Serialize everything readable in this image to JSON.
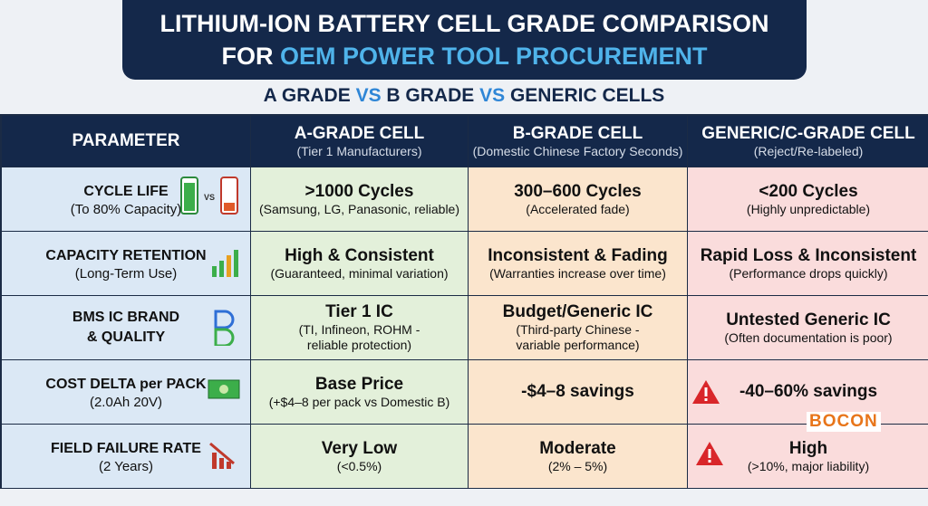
{
  "header": {
    "title_line_1": "LITHIUM-ION BATTERY CELL GRADE COMPARISON",
    "title_line_2": [
      "FOR",
      "OEM POWER TOOL PROCUREMENT"
    ]
  },
  "subtitle": [
    "A GRADE",
    "VS",
    "B GRADE",
    "VS",
    "GENERIC CELLS"
  ],
  "table": {
    "columns": [
      {
        "title": [
          "PARAMETER"
        ],
        "sub": []
      },
      {
        "title": [
          "A-GRADE CELL"
        ],
        "sub": [
          "(Tier 1 Manufacturers)"
        ]
      },
      {
        "title": [
          "B-GRADE CELL"
        ],
        "sub": [
          "(Domestic Chinese Factory Seconds)"
        ]
      },
      {
        "title": [
          "GENERIC/C-GRADE CELL"
        ],
        "sub": [
          "(Reject/Re-labeled)"
        ]
      }
    ],
    "rows": [
      [
        {
          "title": [
            "CYCLE LIFE"
          ],
          "sub": [
            "(To 80% Capacity)"
          ]
        },
        {
          "title": [
            ">1000 Cycles"
          ],
          "sub": [
            "(Samsung, LG, Panasonic, reliable)"
          ]
        },
        {
          "title": [
            "300–600 Cycles"
          ],
          "sub": [
            "(Accelerated fade)"
          ]
        },
        {
          "title": [
            "<200 Cycles"
          ],
          "sub": [
            "(Highly unpredictable)"
          ]
        }
      ],
      [
        {
          "title": [
            "CAPACITY RETENTION"
          ],
          "sub": [
            "(Long-Term Use)"
          ]
        },
        {
          "title": [
            "High & Consistent"
          ],
          "sub": [
            "(Guaranteed, minimal variation)"
          ]
        },
        {
          "title": [
            "Inconsistent & Fading"
          ],
          "sub": [
            "(Warranties increase over time)"
          ]
        },
        {
          "title": [
            "Rapid Loss & Inconsistent"
          ],
          "sub": [
            "(Performance drops quickly)"
          ]
        }
      ],
      [
        {
          "title": [
            "BMS IC BRAND",
            "& QUALITY"
          ],
          "sub": []
        },
        {
          "title": [
            "Tier 1 IC"
          ],
          "sub": [
            "(TI, Infineon, ROHM -",
            "reliable protection)"
          ]
        },
        {
          "title": [
            "Budget/Generic IC"
          ],
          "sub": [
            "(Third-party Chinese -",
            "variable performance)"
          ]
        },
        {
          "title": [
            "Untested Generic IC"
          ],
          "sub": [
            "(Often documentation is poor)"
          ]
        }
      ],
      [
        {
          "title": [
            "COST DELTA per PACK"
          ],
          "sub": [
            "(2.0Ah 20V)"
          ]
        },
        {
          "title": [
            "Base Price"
          ],
          "sub": [
            "(+$4–8 per pack vs Domestic B)"
          ]
        },
        {
          "title": [
            "-$4–8 savings"
          ],
          "sub": []
        },
        {
          "title": [
            "-40–60% savings"
          ],
          "sub": []
        }
      ],
      [
        {
          "title": [
            "FIELD FAILURE RATE"
          ],
          "sub": [
            "(2 Years)"
          ]
        },
        {
          "title": [
            "Very Low"
          ],
          "sub": [
            "(<0.5%)"
          ]
        },
        {
          "title": [
            "Moderate"
          ],
          "sub": [
            "(2% – 5%)"
          ]
        },
        {
          "title": [
            "High"
          ],
          "sub": [
            "(>10%, major liability)"
          ]
        }
      ]
    ]
  },
  "icons": {
    "battery_vs": "VS"
  },
  "logo": "BOCON"
}
